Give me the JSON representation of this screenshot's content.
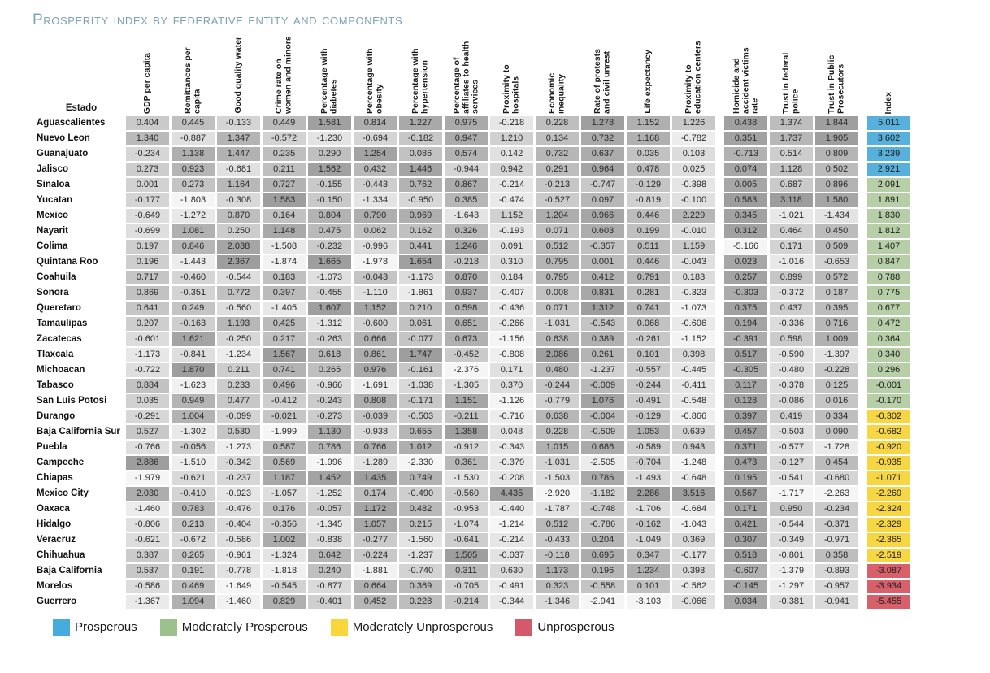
{
  "title": "Prosperity index by federative entity and components",
  "colors": {
    "title": "#7ba3bb",
    "index_fill": {
      "prosperous": "#58B0DC",
      "moderately_prosperous": "#B6CFA7",
      "moderately_unprosperous": "#F7D644",
      "unprosperous": "#D7606B"
    },
    "legend_fill": {
      "prosperous": "#45ACDC",
      "moderately_prosperous": "#9CC18D",
      "moderately_unprosperous": "#F8D63C",
      "unprosperous": "#D4596A"
    }
  },
  "legend": {
    "items": [
      {
        "label": "Prosperous",
        "category": "prosperous"
      },
      {
        "label": "Moderately Prosperous",
        "category": "moderately_prosperous"
      },
      {
        "label": "Moderately Unprosperous",
        "category": "moderately_unprosperous"
      },
      {
        "label": "Unprosperous",
        "category": "unprosperous"
      }
    ]
  },
  "chart_data": {
    "type": "heatmap",
    "title": "Prosperity index by federative entity and components",
    "row_label_header": "Estado",
    "shading": "per-column min-max normalized grayscale, darker = higher value",
    "columns": [
      "GDP per capita",
      "Remittances per capita",
      "Good quality water",
      "Crime rate on women and minors",
      "Percentage with diabetes",
      "Percentage with obesity",
      "Percentage with hypertension",
      "Percentage of affiliates to health services",
      "Proximity to hospitals",
      "Economic inequality",
      "Rate of protests and civil unrest",
      "Life expectancy",
      "Proximity to education centers",
      "Homicide and accident victims rate",
      "Trust in federal police",
      "Trust in Public Prosecutors"
    ],
    "index_column": "Index",
    "rows": [
      {
        "name": "Aguascalientes",
        "values": [
          0.404,
          0.445,
          -0.133,
          0.449,
          1.581,
          0.814,
          1.227,
          0.975,
          -0.218,
          0.228,
          1.278,
          1.152,
          1.226,
          0.438,
          1.374,
          1.844
        ],
        "index": 5.011,
        "category": "prosperous"
      },
      {
        "name": "Nuevo Leon",
        "values": [
          1.34,
          -0.887,
          1.347,
          -0.572,
          -1.23,
          -0.694,
          -0.182,
          0.947,
          1.21,
          0.134,
          0.732,
          1.168,
          -0.782,
          0.351,
          1.737,
          1.905
        ],
        "index": 3.602,
        "category": "prosperous"
      },
      {
        "name": "Guanajuato",
        "values": [
          -0.234,
          1.138,
          1.447,
          0.235,
          0.29,
          1.254,
          0.086,
          0.574,
          0.142,
          0.732,
          0.637,
          0.035,
          0.103,
          -0.713,
          0.514,
          0.809
        ],
        "index": 3.239,
        "category": "prosperous"
      },
      {
        "name": "Jalisco",
        "values": [
          0.273,
          0.923,
          -0.681,
          0.211,
          1.562,
          0.432,
          1.446,
          -0.944,
          0.942,
          0.291,
          0.964,
          0.478,
          0.025,
          0.074,
          1.128,
          0.502
        ],
        "index": 2.921,
        "category": "prosperous"
      },
      {
        "name": "Sinaloa",
        "values": [
          0.001,
          0.273,
          1.164,
          0.727,
          -0.155,
          -0.443,
          0.762,
          0.867,
          -0.214,
          -0.213,
          -0.747,
          -0.129,
          -0.398,
          0.005,
          0.687,
          0.896
        ],
        "index": 2.091,
        "category": "moderately_prosperous"
      },
      {
        "name": "Yucatan",
        "values": [
          -0.177,
          -1.803,
          -0.308,
          1.583,
          -0.15,
          -1.334,
          -0.95,
          0.385,
          -0.474,
          -0.527,
          0.097,
          -0.819,
          -0.1,
          0.583,
          3.118,
          1.58
        ],
        "index": 1.891,
        "category": "moderately_prosperous"
      },
      {
        "name": "Mexico",
        "values": [
          -0.649,
          -1.272,
          0.87,
          0.164,
          0.804,
          0.79,
          0.969,
          -1.643,
          1.152,
          1.204,
          0.966,
          0.446,
          2.229,
          0.345,
          -1.021,
          -1.434
        ],
        "index": 1.83,
        "category": "moderately_prosperous"
      },
      {
        "name": "Nayarit",
        "values": [
          -0.699,
          1.081,
          0.25,
          1.148,
          0.475,
          0.062,
          0.162,
          0.326,
          -0.193,
          0.071,
          0.603,
          0.199,
          -0.01,
          0.312,
          0.464,
          0.45
        ],
        "index": 1.812,
        "category": "moderately_prosperous"
      },
      {
        "name": "Colima",
        "values": [
          0.197,
          0.846,
          2.038,
          -1.508,
          -0.232,
          -0.996,
          0.441,
          1.246,
          0.091,
          0.512,
          -0.357,
          0.511,
          1.159,
          -5.166,
          0.171,
          0.509
        ],
        "index": 1.407,
        "category": "moderately_prosperous"
      },
      {
        "name": "Quintana Roo",
        "values": [
          0.196,
          -1.443,
          2.367,
          -1.874,
          1.665,
          -1.978,
          1.654,
          -0.218,
          0.31,
          0.795,
          0.001,
          0.446,
          -0.043,
          0.023,
          -1.016,
          -0.653
        ],
        "index": 0.847,
        "category": "moderately_prosperous"
      },
      {
        "name": "Coahuila",
        "values": [
          0.717,
          -0.46,
          -0.544,
          0.183,
          -1.073,
          -0.043,
          -1.173,
          0.87,
          0.184,
          0.795,
          0.412,
          0.791,
          0.183,
          0.257,
          0.899,
          0.572
        ],
        "index": 0.788,
        "category": "moderately_prosperous"
      },
      {
        "name": "Sonora",
        "values": [
          0.869,
          -0.351,
          0.772,
          0.397,
          -0.455,
          -1.11,
          -1.861,
          0.937,
          -0.407,
          0.008,
          0.831,
          0.281,
          -0.323,
          -0.303,
          -0.372,
          0.187
        ],
        "index": 0.775,
        "category": "moderately_prosperous"
      },
      {
        "name": "Queretaro",
        "values": [
          0.641,
          0.249,
          -0.56,
          -1.405,
          1.607,
          1.152,
          0.21,
          0.598,
          -0.436,
          0.071,
          1.312,
          0.741,
          -1.073,
          0.375,
          0.437,
          0.395
        ],
        "index": 0.677,
        "category": "moderately_prosperous"
      },
      {
        "name": "Tamaulipas",
        "values": [
          0.207,
          -0.163,
          1.193,
          0.425,
          -1.312,
          -0.6,
          0.061,
          0.651,
          -0.266,
          -1.031,
          -0.543,
          0.068,
          -0.606,
          0.194,
          -0.336,
          0.716
        ],
        "index": 0.472,
        "category": "moderately_prosperous"
      },
      {
        "name": "Zacatecas",
        "values": [
          -0.601,
          1.621,
          -0.25,
          0.217,
          -0.263,
          0.666,
          -0.077,
          0.673,
          -1.156,
          0.638,
          0.389,
          -0.261,
          -1.152,
          -0.391,
          0.598,
          1.009
        ],
        "index": 0.364,
        "category": "moderately_prosperous"
      },
      {
        "name": "Tlaxcala",
        "values": [
          -1.173,
          -0.841,
          -1.234,
          1.567,
          0.618,
          0.861,
          1.747,
          -0.452,
          -0.808,
          2.086,
          0.261,
          0.101,
          0.398,
          0.517,
          -0.59,
          -1.397
        ],
        "index": 0.34,
        "category": "moderately_prosperous"
      },
      {
        "name": "Michoacan",
        "values": [
          -0.722,
          1.87,
          0.211,
          0.741,
          0.265,
          0.976,
          -0.161,
          -2.376,
          0.171,
          0.48,
          -1.237,
          -0.557,
          -0.445,
          -0.305,
          -0.48,
          -0.228
        ],
        "index": 0.296,
        "category": "moderately_prosperous"
      },
      {
        "name": "Tabasco",
        "values": [
          0.884,
          -1.623,
          0.233,
          0.496,
          -0.966,
          -1.691,
          -1.038,
          -1.305,
          0.37,
          -0.244,
          -0.009,
          -0.244,
          -0.411,
          0.117,
          -0.378,
          0.125
        ],
        "index": -0.001,
        "category": "moderately_prosperous"
      },
      {
        "name": "San Luis Potosi",
        "values": [
          0.035,
          0.949,
          0.477,
          -0.412,
          -0.243,
          0.808,
          -0.171,
          1.151,
          -1.126,
          -0.779,
          1.076,
          -0.491,
          -0.548,
          0.128,
          -0.086,
          0.016
        ],
        "index": -0.17,
        "category": "moderately_prosperous"
      },
      {
        "name": "Durango",
        "values": [
          -0.291,
          1.004,
          -0.099,
          -0.021,
          -0.273,
          -0.039,
          -0.503,
          -0.211,
          -0.716,
          0.638,
          -0.004,
          -0.129,
          -0.866,
          0.397,
          0.419,
          0.334
        ],
        "index": -0.302,
        "category": "moderately_unprosperous"
      },
      {
        "name": "Baja California Sur",
        "values": [
          0.527,
          -1.302,
          0.53,
          -1.999,
          1.13,
          -0.938,
          0.655,
          1.358,
          0.048,
          0.228,
          -0.509,
          1.053,
          0.639,
          0.457,
          -0.503,
          0.09
        ],
        "index": -0.682,
        "category": "moderately_unprosperous"
      },
      {
        "name": "Puebla",
        "values": [
          -0.766,
          -0.056,
          -1.273,
          0.587,
          0.786,
          0.766,
          1.012,
          -0.912,
          -0.343,
          1.015,
          0.686,
          -0.589,
          0.943,
          0.371,
          -0.577,
          -1.728
        ],
        "index": -0.92,
        "category": "moderately_unprosperous"
      },
      {
        "name": "Campeche",
        "values": [
          2.886,
          -1.51,
          -0.342,
          0.569,
          -1.996,
          -1.289,
          -2.33,
          0.361,
          -0.379,
          -1.031,
          -2.505,
          -0.704,
          -1.248,
          0.473,
          -0.127,
          0.454
        ],
        "index": -0.935,
        "category": "moderately_unprosperous"
      },
      {
        "name": "Chiapas",
        "values": [
          -1.979,
          -0.621,
          -0.237,
          1.187,
          1.452,
          1.435,
          0.749,
          -1.53,
          -0.208,
          -1.503,
          0.786,
          -1.493,
          -0.648,
          0.195,
          -0.541,
          -0.68
        ],
        "index": -1.071,
        "category": "moderately_unprosperous"
      },
      {
        "name": "Mexico City",
        "values": [
          2.03,
          -0.41,
          -0.923,
          -1.057,
          -1.252,
          0.174,
          -0.49,
          -0.56,
          4.435,
          -2.92,
          -1.182,
          2.286,
          3.516,
          0.567,
          -1.717,
          -2.263
        ],
        "index": -2.269,
        "category": "moderately_unprosperous"
      },
      {
        "name": "Oaxaca",
        "values": [
          -1.46,
          0.783,
          -0.476,
          0.176,
          -0.057,
          1.172,
          0.482,
          -0.953,
          -0.44,
          -1.787,
          -0.748,
          -1.706,
          -0.684,
          0.171,
          0.95,
          -0.234
        ],
        "index": -2.324,
        "category": "moderately_unprosperous"
      },
      {
        "name": "Hidalgo",
        "values": [
          -0.806,
          0.213,
          -0.404,
          -0.356,
          -1.345,
          1.057,
          0.215,
          -1.074,
          -1.214,
          0.512,
          -0.786,
          -0.162,
          -1.043,
          0.421,
          -0.544,
          -0.371
        ],
        "index": -2.329,
        "category": "moderately_unprosperous"
      },
      {
        "name": "Veracruz",
        "values": [
          -0.621,
          -0.672,
          -0.586,
          1.002,
          -0.838,
          -0.277,
          -1.56,
          -0.641,
          -0.214,
          -0.433,
          0.204,
          -1.049,
          0.369,
          0.307,
          -0.349,
          -0.971
        ],
        "index": -2.365,
        "category": "moderately_unprosperous"
      },
      {
        "name": "Chihuahua",
        "values": [
          0.387,
          0.265,
          -0.961,
          -1.324,
          0.642,
          -0.224,
          -1.237,
          1.505,
          -0.037,
          -0.118,
          0.695,
          0.347,
          -0.177,
          0.518,
          -0.801,
          0.358
        ],
        "index": -2.519,
        "category": "moderately_unprosperous"
      },
      {
        "name": "Baja California",
        "values": [
          0.537,
          0.191,
          -0.778,
          -1.818,
          0.24,
          -1.881,
          -0.74,
          0.311,
          0.63,
          1.173,
          0.196,
          1.234,
          0.393,
          -0.607,
          -1.379,
          -0.893
        ],
        "index": -3.087,
        "category": "unprosperous"
      },
      {
        "name": "Morelos",
        "values": [
          -0.586,
          0.469,
          -1.649,
          -0.545,
          -0.877,
          0.664,
          0.369,
          -0.705,
          -0.491,
          0.323,
          -0.558,
          0.101,
          -0.562,
          -0.145,
          -1.297,
          -0.957
        ],
        "index": -3.934,
        "category": "unprosperous"
      },
      {
        "name": "Guerrero",
        "values": [
          -1.367,
          1.094,
          -1.46,
          0.829,
          -0.401,
          0.452,
          0.228,
          -0.214,
          -0.344,
          -1.346,
          -2.941,
          -3.103,
          -0.066,
          0.034,
          -0.381,
          -0.941
        ],
        "index": -5.455,
        "category": "unprosperous"
      }
    ]
  }
}
